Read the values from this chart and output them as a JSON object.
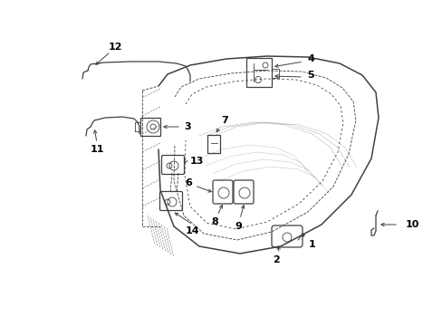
{
  "background_color": "#ffffff",
  "line_color": "#404040",
  "label_color": "#000000",
  "figsize": [
    4.89,
    3.6
  ],
  "dpi": 100
}
